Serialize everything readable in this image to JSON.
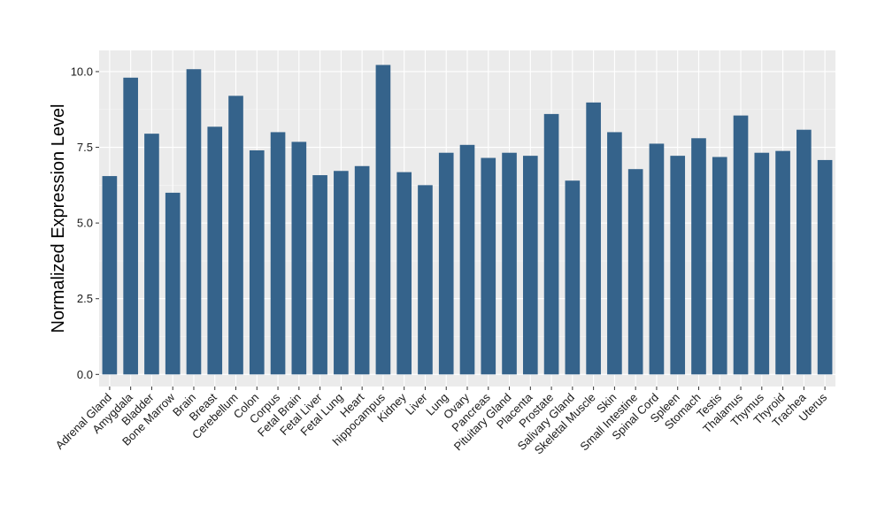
{
  "chart_data": {
    "type": "bar",
    "title": "",
    "xlabel": "",
    "ylabel": "Normalized Expression Level",
    "ylim": [
      -0.4,
      10.7
    ],
    "yticks": [
      0.0,
      2.5,
      5.0,
      7.5,
      10.0
    ],
    "ytick_labels": [
      "0.0",
      "2.5",
      "5.0",
      "7.5",
      "10.0"
    ],
    "grid": true,
    "legend": "none",
    "categories": [
      "Adrenal Gland",
      "Amygdala",
      "Bladder",
      "Bone Marrow",
      "Brain",
      "Breast",
      "Cerebellum",
      "Colon",
      "Corpus",
      "Fetal Brain",
      "Fetal Liver",
      "Fetal Lung",
      "Heart",
      "hippocampus",
      "Kidney",
      "Liver",
      "Lung",
      "Ovary",
      "Pancreas",
      "Pituitary Gland",
      "Placenta",
      "Prostate",
      "Salivary Gland",
      "Skeletal Muscle",
      "Skin",
      "Small Intestine",
      "Spinal Cord",
      "Spleen",
      "Stomach",
      "Testis",
      "Thalamus",
      "Thymus",
      "Thyroid",
      "Trachea",
      "Uterus"
    ],
    "values": [
      6.55,
      9.8,
      7.95,
      6.0,
      10.08,
      8.18,
      9.2,
      7.4,
      8.0,
      7.68,
      6.58,
      6.72,
      6.88,
      10.22,
      6.68,
      6.25,
      7.32,
      7.58,
      7.15,
      7.32,
      7.22,
      8.6,
      6.4,
      8.98,
      8.0,
      6.78,
      7.62,
      7.22,
      7.8,
      7.18,
      8.55,
      7.32,
      7.38,
      8.08,
      7.08
    ],
    "colors": {
      "bar": "#35638b",
      "panel": "#ebebeb",
      "grid_major": "#ffffff",
      "grid_minor": "#f5f5f5",
      "tick": "#333333"
    }
  }
}
